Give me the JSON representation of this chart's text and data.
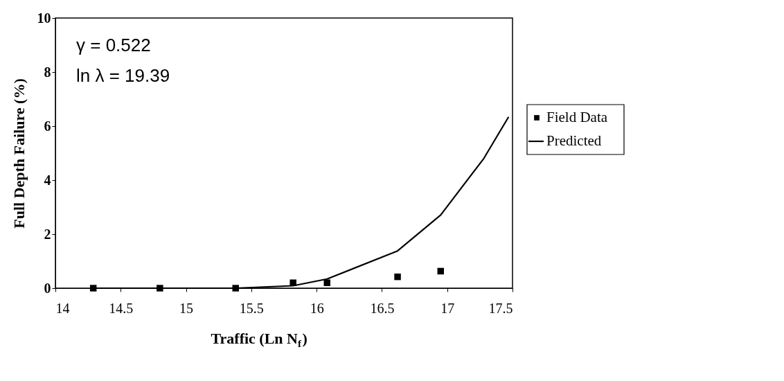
{
  "chart_data": {
    "type": "scatter",
    "xlabel": "Traffic (Ln N$_{f}$)",
    "ylabel": "Full Depth Failure (%)",
    "annotations": [
      "γ = 0.522",
      "ln λ = 19.39"
    ],
    "series": [
      {
        "name": "Field Data",
        "color": "#000000",
        "marker": "square",
        "x": [
          14.29,
          14.8,
          15.38,
          15.82,
          16.08,
          16.62,
          16.95
        ],
        "values": [
          0,
          0,
          0,
          0.2,
          0.2,
          0.42,
          0.63
        ]
      },
      {
        "name": "Predicted",
        "type": "line",
        "color": "#000000",
        "line_style": "solid",
        "x": [
          14.29,
          14.8,
          15.38,
          15.82,
          16.08,
          16.62,
          16.95,
          17.28,
          17.47
        ],
        "values": [
          0,
          0,
          0,
          0.09,
          0.34,
          1.38,
          2.71,
          4.8,
          6.34
        ]
      }
    ],
    "xlim": [
      14,
      17.5
    ],
    "xticks": [
      14,
      14.5,
      15,
      15.5,
      16,
      16.5,
      17,
      17.5
    ],
    "ylim": [
      0,
      10
    ],
    "yticks": [
      0,
      2,
      4,
      6,
      8,
      10
    ],
    "grid": false,
    "legend": "right"
  }
}
